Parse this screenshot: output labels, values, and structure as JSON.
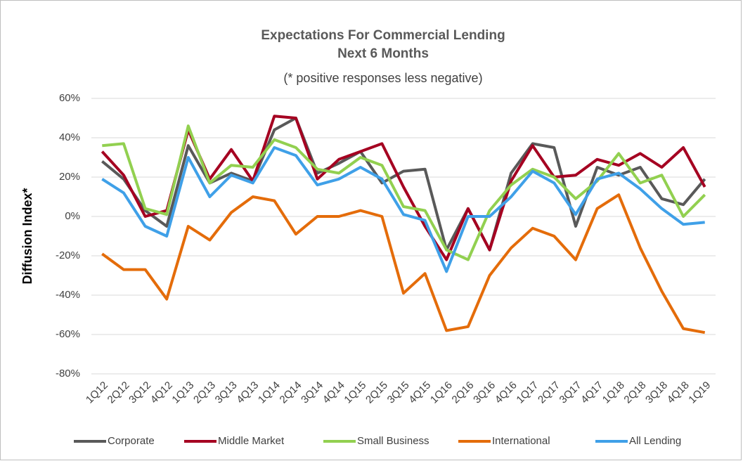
{
  "chart_data": {
    "type": "line",
    "title": "Expectations For Commercial Lending",
    "subtitle": "Next 6 Months",
    "note": "(* positive responses less negative)",
    "y_label": "Diffusion Index*",
    "categories": [
      "1Q12",
      "2Q12",
      "3Q12",
      "4Q12",
      "1Q13",
      "2Q13",
      "3Q13",
      "4Q13",
      "1Q14",
      "2Q14",
      "3Q14",
      "4Q14",
      "1Q15",
      "2Q15",
      "3Q15",
      "4Q15",
      "1Q16",
      "2Q16",
      "3Q16",
      "4Q16",
      "1Q17",
      "2Q17",
      "3Q17",
      "4Q17",
      "1Q18",
      "2Q18",
      "3Q18",
      "4Q18",
      "1Q19"
    ],
    "series": [
      {
        "name": "Corporate",
        "color": "#595959",
        "values": [
          28,
          19,
          3,
          -5,
          36,
          17,
          22,
          18,
          44,
          50,
          22,
          27,
          33,
          17,
          23,
          24,
          -17,
          4,
          -17,
          22,
          37,
          35,
          -5,
          25,
          21,
          25,
          9,
          6,
          19
        ]
      },
      {
        "name": "Middle Market",
        "color": "#a50021",
        "values": [
          33,
          21,
          0,
          3,
          44,
          19,
          34,
          18,
          51,
          50,
          19,
          29,
          33,
          37,
          15,
          -5,
          -22,
          4,
          -17,
          18,
          36,
          20,
          21,
          29,
          26,
          32,
          25,
          35,
          15
        ]
      },
      {
        "name": "Small Business",
        "color": "#92d050",
        "values": [
          36,
          37,
          4,
          1,
          46,
          17,
          26,
          25,
          39,
          35,
          24,
          22,
          30,
          26,
          5,
          3,
          -17,
          -22,
          3,
          16,
          24,
          20,
          9,
          18,
          32,
          17,
          21,
          0,
          11
        ]
      },
      {
        "name": "International",
        "color": "#e46c0a",
        "values": [
          -19,
          -27,
          -27,
          -42,
          -5,
          -12,
          2,
          10,
          8,
          -9,
          0,
          0,
          3,
          0,
          -39,
          -29,
          -58,
          -56,
          -30,
          -16,
          -6,
          -10,
          -22,
          4,
          11,
          -16,
          -38,
          -57,
          -59
        ]
      },
      {
        "name": "All Lending",
        "color": "#3fa0e8",
        "values": [
          19,
          12,
          -5,
          -10,
          30,
          10,
          21,
          17,
          35,
          31,
          16,
          19,
          25,
          19,
          1,
          -2,
          -28,
          0,
          0,
          10,
          23,
          17,
          1,
          19,
          22,
          14,
          4,
          -4,
          -3
        ]
      }
    ],
    "ylim": [
      -80,
      60
    ],
    "yticks": [
      {
        "value": -80,
        "label": "-80%"
      },
      {
        "value": -60,
        "label": "-60%"
      },
      {
        "value": -40,
        "label": "-40%"
      },
      {
        "value": -20,
        "label": "-20%"
      },
      {
        "value": 0,
        "label": "0%"
      },
      {
        "value": 20,
        "label": "20%"
      },
      {
        "value": 40,
        "label": "40%"
      },
      {
        "value": 60,
        "label": "60%"
      }
    ],
    "grid": true
  }
}
